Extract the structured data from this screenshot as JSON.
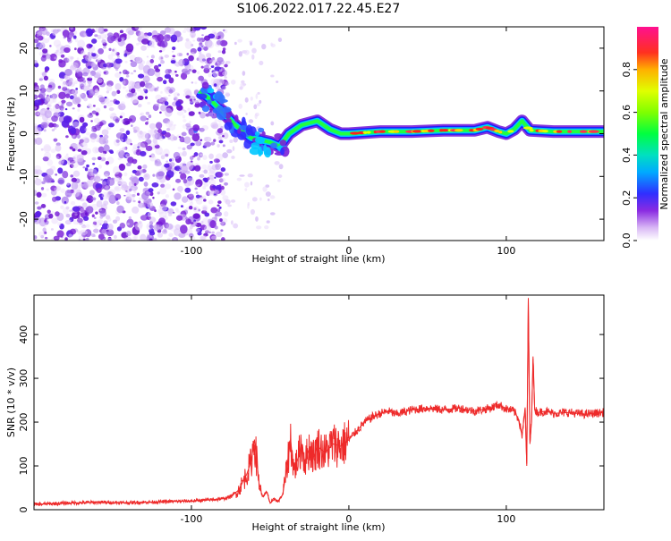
{
  "title": "S106.2022.017.22.45.E27",
  "chart_data": [
    {
      "type": "heatmap",
      "name": "spectrogram",
      "xlabel": "Height of straight line (km)",
      "ylabel": "Frequency (Hz)",
      "xlim": [
        -200,
        162
      ],
      "ylim": [
        -25,
        25
      ],
      "xticks": [
        -100,
        0,
        100
      ],
      "yticks": [
        -20,
        -10,
        0,
        10,
        20
      ],
      "colorbar": {
        "label": "Normalized spectral amplitude",
        "range": [
          0,
          1
        ],
        "ticks": [
          "0.0",
          "0.2",
          "0.4",
          "0.6",
          "0.8"
        ]
      },
      "dominant_frequency_track": {
        "x": [
          -95,
          -88,
          -80,
          -72,
          -62,
          -50,
          -44,
          -38,
          -30,
          -20,
          -12,
          -5,
          0,
          20,
          40,
          60,
          80,
          88,
          95,
          100,
          105,
          110,
          115,
          130,
          162
        ],
        "y": [
          10,
          8,
          5,
          2,
          -1,
          -2,
          -3,
          0,
          2,
          3,
          1,
          0,
          0,
          0.5,
          0.5,
          0.8,
          0.8,
          1.5,
          0.5,
          0,
          1,
          3,
          0.8,
          0.5,
          0.5
        ]
      }
    },
    {
      "type": "line",
      "name": "snr",
      "xlabel": "Height of straight line (km)",
      "ylabel": "SNR (10 * v/v)",
      "xlim": [
        -200,
        162
      ],
      "ylim": [
        0,
        490
      ],
      "xticks": [
        -100,
        0,
        100
      ],
      "yticks": [
        0,
        100,
        200,
        300,
        400
      ],
      "color": "#ee2a2a",
      "x": [
        -200,
        -180,
        -160,
        -140,
        -120,
        -100,
        -90,
        -80,
        -75,
        -70,
        -65,
        -62,
        -60,
        -57,
        -55,
        -52,
        -50,
        -47,
        -45,
        -42,
        -40,
        -37,
        -35,
        -32,
        -30,
        -28,
        -25,
        -22,
        -20,
        -15,
        -10,
        -5,
        0,
        5,
        10,
        15,
        20,
        25,
        30,
        40,
        50,
        60,
        70,
        80,
        90,
        95,
        100,
        105,
        108,
        110,
        112,
        113,
        114,
        115,
        116,
        117,
        118,
        120,
        125,
        130,
        140,
        150,
        162
      ],
      "y": [
        12,
        15,
        17,
        16,
        18,
        20,
        22,
        25,
        30,
        45,
        80,
        110,
        160,
        60,
        30,
        40,
        15,
        25,
        18,
        35,
        80,
        160,
        90,
        120,
        150,
        110,
        140,
        120,
        145,
        130,
        150,
        145,
        160,
        180,
        200,
        212,
        220,
        225,
        218,
        228,
        232,
        228,
        232,
        225,
        232,
        240,
        230,
        225,
        205,
        170,
        230,
        100,
        480,
        150,
        200,
        350,
        230,
        222,
        225,
        220,
        222,
        218,
        222
      ]
    }
  ]
}
